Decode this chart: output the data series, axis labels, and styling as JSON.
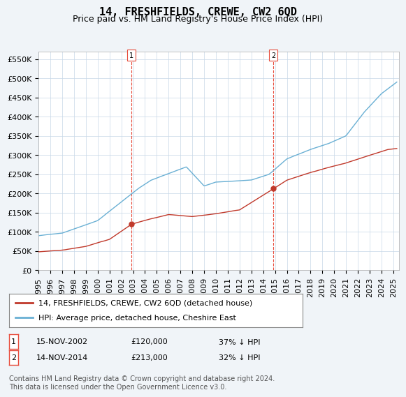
{
  "title": "14, FRESHFIELDS, CREWE, CW2 6QD",
  "subtitle": "Price paid vs. HM Land Registry's House Price Index (HPI)",
  "ylabel_ticks": [
    "£0",
    "£50K",
    "£100K",
    "£150K",
    "£200K",
    "£250K",
    "£300K",
    "£350K",
    "£400K",
    "£450K",
    "£500K",
    "£550K"
  ],
  "ytick_values": [
    0,
    50000,
    100000,
    150000,
    200000,
    250000,
    300000,
    350000,
    400000,
    450000,
    500000,
    550000
  ],
  "ylim": [
    0,
    570000
  ],
  "xlim_start": 1995.0,
  "xlim_end": 2025.5,
  "sale1_x": 2002.87,
  "sale1_y": 120000,
  "sale1_label": "1",
  "sale1_date": "15-NOV-2002",
  "sale1_price": "£120,000",
  "sale1_pct": "37% ↓ HPI",
  "sale2_x": 2014.87,
  "sale2_y": 213000,
  "sale2_label": "2",
  "sale2_date": "14-NOV-2014",
  "sale2_price": "£213,000",
  "sale2_pct": "32% ↓ HPI",
  "hpi_color": "#6ab0d4",
  "price_color": "#c0392b",
  "vline_color": "#e74c3c",
  "background_color": "#f0f4f8",
  "plot_bg_color": "#ffffff",
  "legend_label_price": "14, FRESHFIELDS, CREWE, CW2 6QD (detached house)",
  "legend_label_hpi": "HPI: Average price, detached house, Cheshire East",
  "footnote": "Contains HM Land Registry data © Crown copyright and database right 2024.\nThis data is licensed under the Open Government Licence v3.0.",
  "title_fontsize": 11,
  "subtitle_fontsize": 9,
  "tick_fontsize": 8,
  "legend_fontsize": 8,
  "footnote_fontsize": 7
}
